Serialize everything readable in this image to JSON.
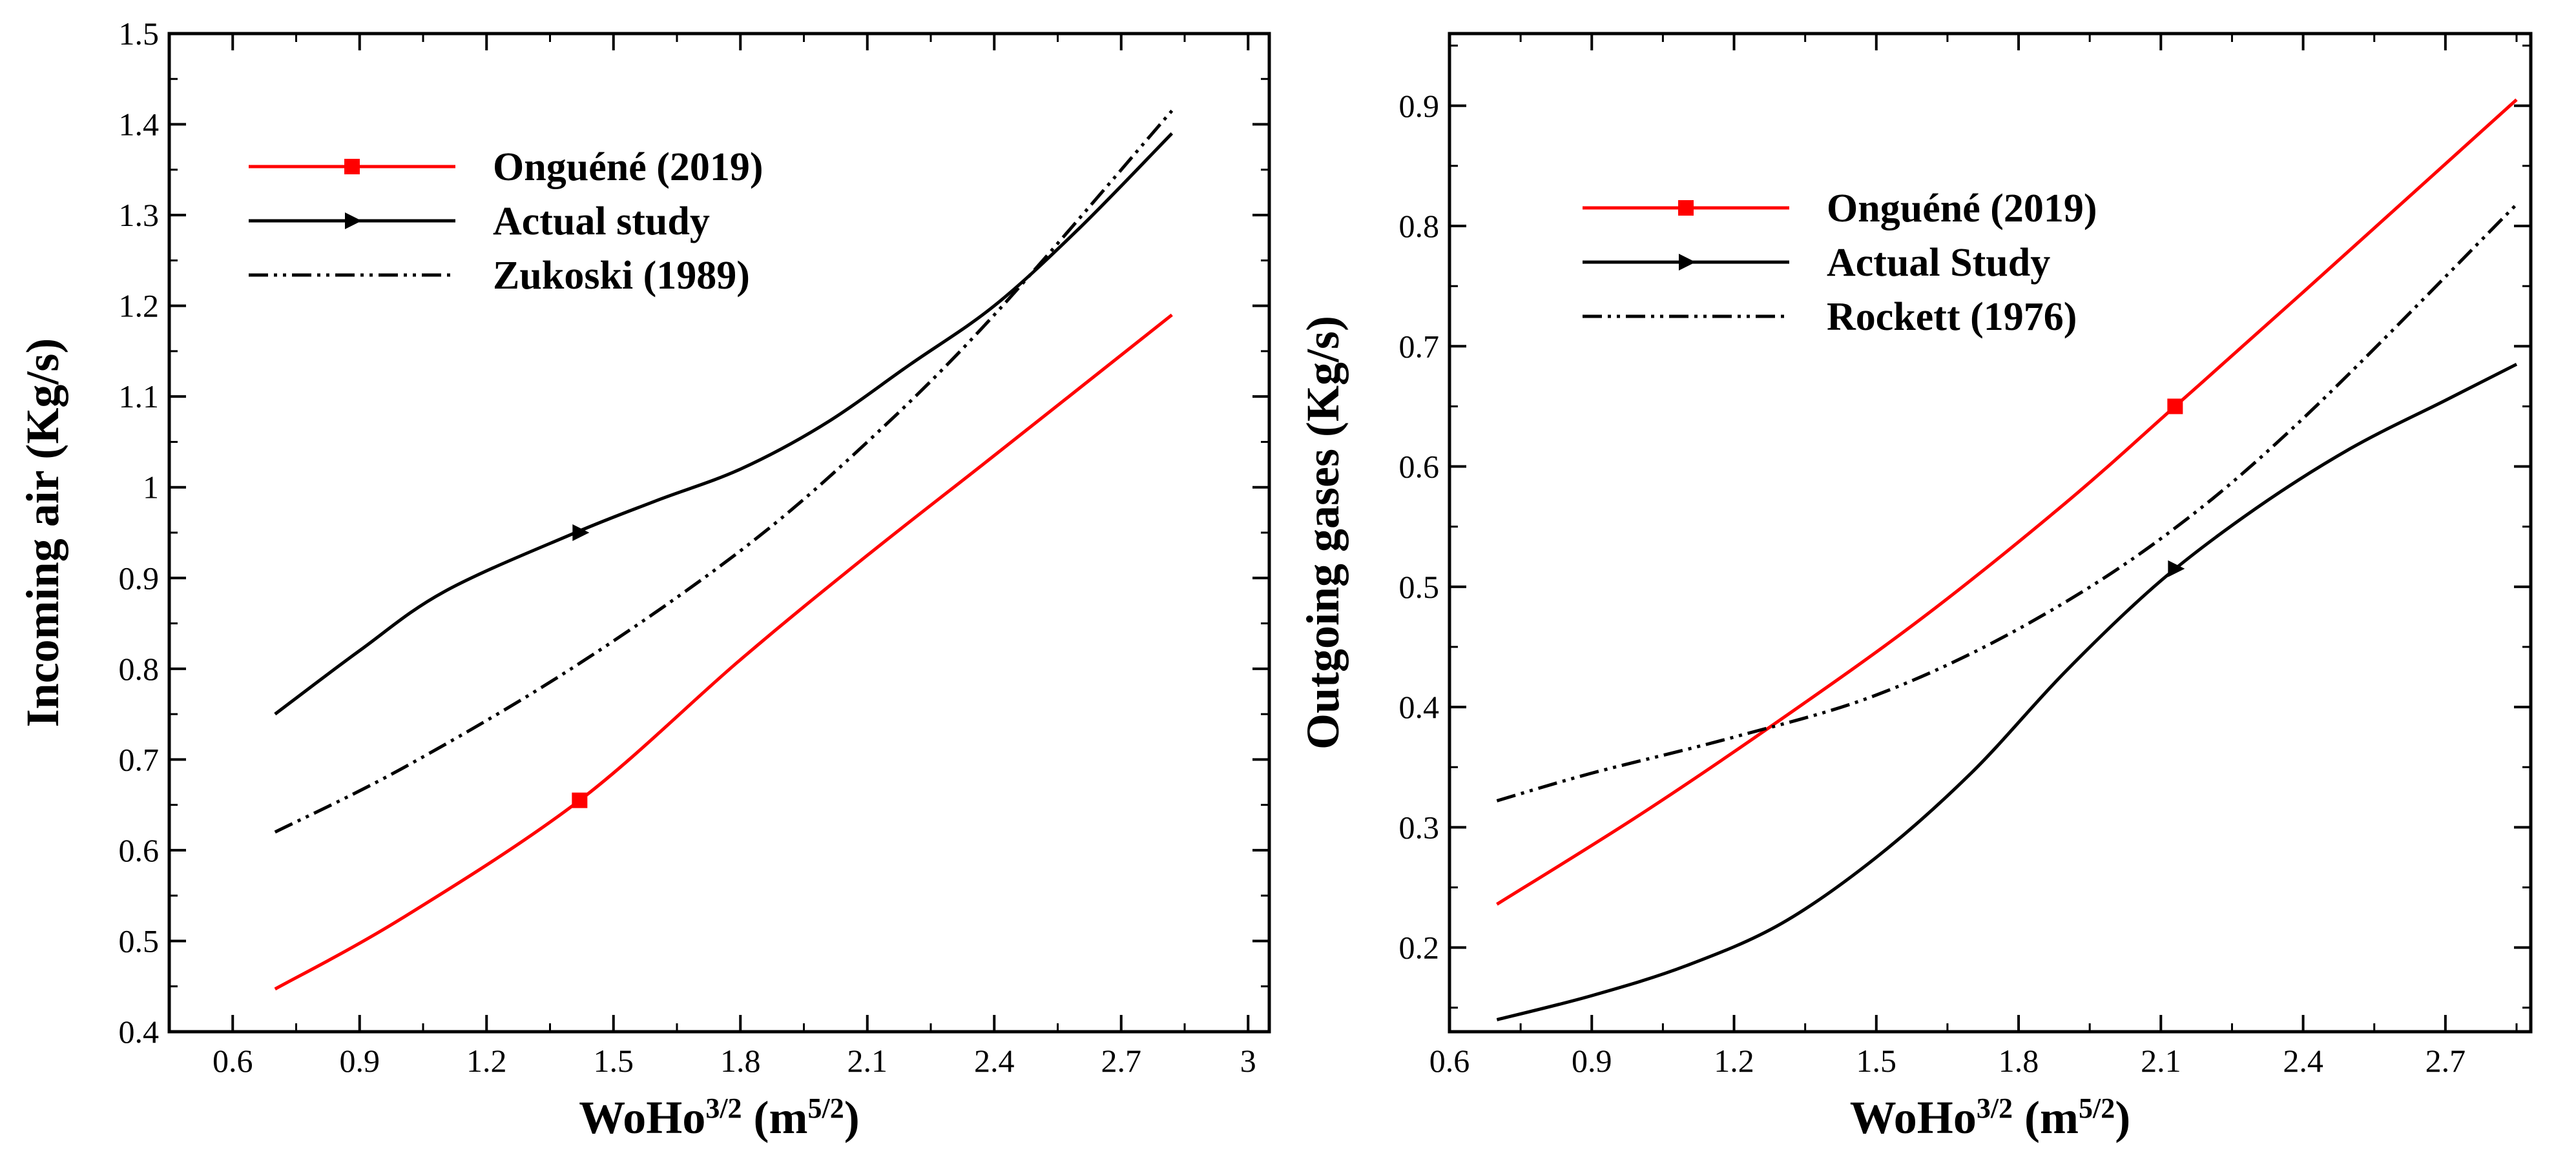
{
  "chart_data": [
    {
      "type": "line",
      "xlabel": "WoHo",
      "xlabel_sup": "3/2",
      "xlabel_unit": "(m",
      "xlabel_unit_sup": "5/2",
      "xlabel_unit_close": ")",
      "ylabel": "Incoming air (Kg/s)",
      "xlim": [
        0.45,
        3.05
      ],
      "ylim": [
        0.4,
        1.5
      ],
      "xticks": [
        0.6,
        0.9,
        1.2,
        1.5,
        1.8,
        2.1,
        2.4,
        2.7,
        3
      ],
      "xtick_labels": [
        "0.6",
        "0.9",
        "1.2",
        "1.5",
        "1.8",
        "2.1",
        "2.4",
        "2.7",
        "3"
      ],
      "yticks": [
        0.4,
        0.5,
        0.6,
        0.7,
        0.8,
        0.9,
        1.0,
        1.1,
        1.2,
        1.3,
        1.4,
        1.5
      ],
      "ytick_labels": [
        "0.4",
        "0.5",
        "0.6",
        "0.7",
        "0.8",
        "0.9",
        "1",
        "1.1",
        "1.2",
        "1.3",
        "1.4",
        "1.5"
      ],
      "grid": false,
      "legend_position": "top-left",
      "series": [
        {
          "name": "Onguéné (2019)",
          "color": "#ff0000",
          "style": "solid",
          "marker": "square",
          "x": [
            0.7,
            1.0,
            1.42,
            1.8,
            2.1,
            2.4,
            2.82
          ],
          "y": [
            0.447,
            0.525,
            0.655,
            0.81,
            0.925,
            1.035,
            1.19
          ],
          "marker_x": [
            1.42
          ],
          "marker_y": [
            0.655
          ]
        },
        {
          "name": "Actual study",
          "color": "#000000",
          "style": "solid",
          "marker": "triangle-right",
          "x": [
            0.7,
            0.9,
            1.1,
            1.4,
            1.6,
            1.8,
            2.0,
            2.2,
            2.4,
            2.6,
            2.82
          ],
          "y": [
            0.75,
            0.82,
            0.885,
            0.948,
            0.985,
            1.02,
            1.07,
            1.135,
            1.2,
            1.285,
            1.39
          ],
          "marker_x": [
            1.42
          ],
          "marker_y": [
            0.95
          ]
        },
        {
          "name": "Zukoski (1989)",
          "color": "#000000",
          "style": "dash-dot-dot",
          "marker": "none",
          "x": [
            0.7,
            1.0,
            1.4,
            1.8,
            2.1,
            2.4,
            2.82
          ],
          "y": [
            0.62,
            0.69,
            0.8,
            0.93,
            1.05,
            1.19,
            1.415
          ]
        }
      ]
    },
    {
      "type": "line",
      "xlabel": "WoHo",
      "xlabel_sup": "3/2",
      "xlabel_unit": "(m",
      "xlabel_unit_sup": "5/2",
      "xlabel_unit_close": ")",
      "ylabel": "Outgoing gases (Kg/s)",
      "xlim": [
        0.6,
        2.88
      ],
      "ylim": [
        0.13,
        0.96
      ],
      "xticks": [
        0.6,
        0.9,
        1.2,
        1.5,
        1.8,
        2.1,
        2.4,
        2.7
      ],
      "xtick_labels": [
        "0.6",
        "0.9",
        "1.2",
        "1.5",
        "1.8",
        "2.1",
        "2.4",
        "2.7"
      ],
      "yticks": [
        0.2,
        0.3,
        0.4,
        0.5,
        0.6,
        0.7,
        0.8,
        0.9
      ],
      "ytick_labels": [
        "0.2",
        "0.3",
        "0.4",
        "0.5",
        "0.6",
        "0.7",
        "0.8",
        "0.9"
      ],
      "grid": false,
      "legend_position": "top-left",
      "series": [
        {
          "name": "Onguéné (2019)",
          "color": "#ff0000",
          "style": "solid",
          "marker": "square",
          "x": [
            0.7,
            1.0,
            1.3,
            1.6,
            1.9,
            2.13,
            2.4,
            2.85
          ],
          "y": [
            0.236,
            0.31,
            0.39,
            0.475,
            0.57,
            0.65,
            0.745,
            0.905
          ],
          "marker_x": [
            2.13
          ],
          "marker_y": [
            0.65
          ]
        },
        {
          "name": "Actual Study",
          "color": "#000000",
          "style": "solid",
          "marker": "triangle-right",
          "x": [
            0.7,
            0.9,
            1.1,
            1.3,
            1.5,
            1.7,
            1.9,
            2.1,
            2.3,
            2.5,
            2.7,
            2.85
          ],
          "y": [
            0.14,
            0.16,
            0.185,
            0.22,
            0.275,
            0.345,
            0.43,
            0.505,
            0.565,
            0.615,
            0.655,
            0.685
          ],
          "marker_x": [
            2.13
          ],
          "marker_y": [
            0.515
          ]
        },
        {
          "name": "Rockett (1976)",
          "color": "#000000",
          "style": "dash-dot-dot",
          "marker": "none",
          "x": [
            0.7,
            0.9,
            1.2,
            1.5,
            1.8,
            2.1,
            2.4,
            2.85
          ],
          "y": [
            0.322,
            0.345,
            0.375,
            0.41,
            0.465,
            0.54,
            0.64,
            0.818
          ]
        }
      ]
    }
  ]
}
